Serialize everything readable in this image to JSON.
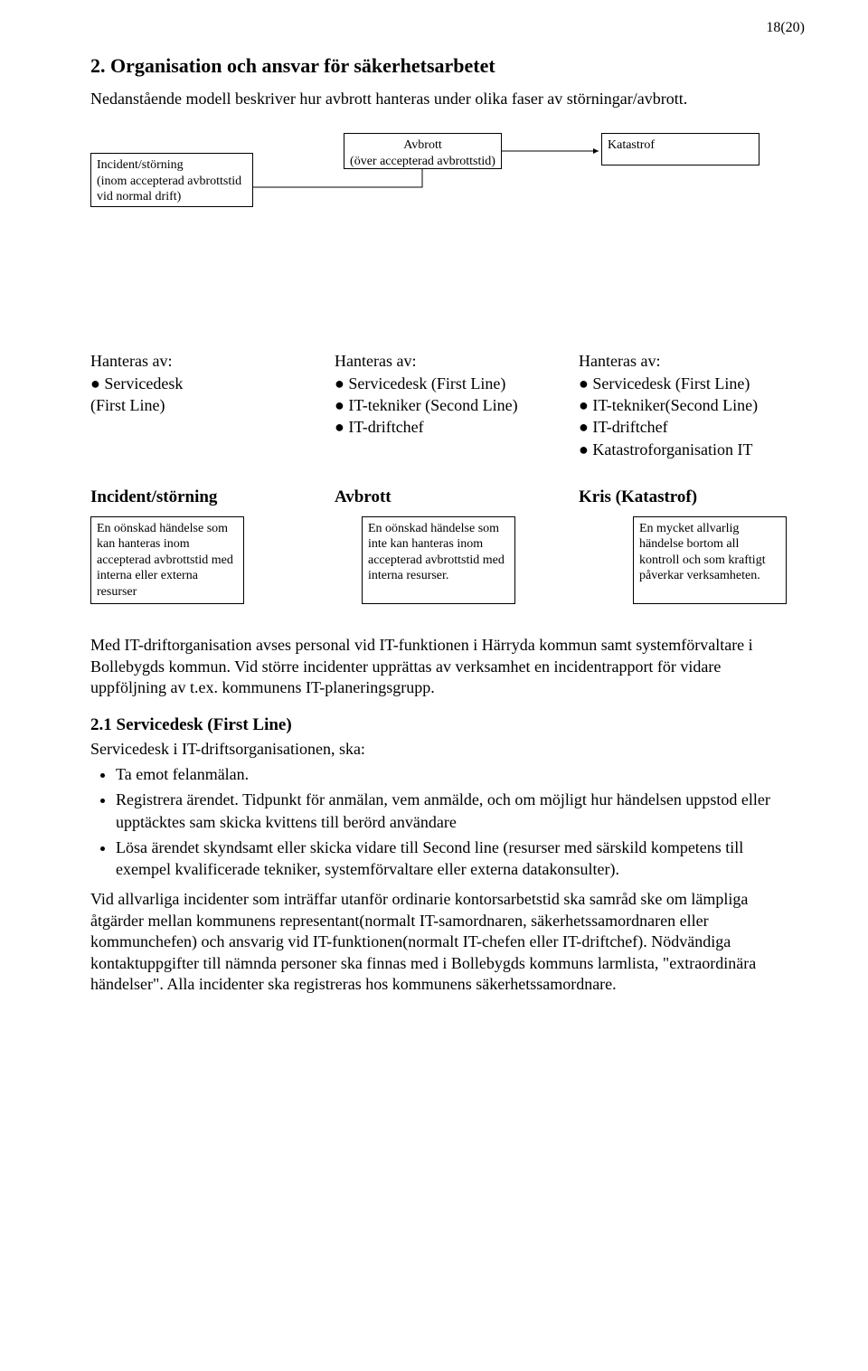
{
  "page_number": "18(20)",
  "section_title": "2. Organisation och ansvar för säkerhetsarbetet",
  "intro": "Nedanstående modell beskriver hur avbrott hanteras under olika faser av störningar/avbrott.",
  "diagram1": {
    "incident_box": "Incident/störning\n(inom accepterad avbrottstid\nvid normal drift)",
    "avbrott_box": "Avbrott\n(över accepterad avbrottstid)",
    "katastrof_box": "Katastrof"
  },
  "handled_by": {
    "col1_title": "Hanteras av:",
    "col1_items": "● Servicedesk\n(First Line)",
    "col2_title": "Hanteras av:",
    "col2_items": "● Servicedesk (First Line)\n● IT-tekniker (Second Line)\n● IT-driftchef",
    "col3_title": "Hanteras av:",
    "col3_items": "● Servicedesk (First Line)\n● IT-tekniker(Second Line)\n● IT-driftchef\n● Katastroforganisation IT"
  },
  "row2": {
    "t1": "Incident/störning",
    "t2": "Avbrott",
    "t3": "Kris (Katastrof)",
    "b1": "En oönskad händelse som kan hanteras inom accepterad avbrottstid med interna eller externa resurser",
    "b2": "En oönskad händelse som inte kan hanteras inom accepterad avbrottstid med interna resurser.",
    "b3": "En mycket allvarlig händelse bortom all kontroll och som kraftigt påverkar verksamheten."
  },
  "para_after": "Med IT-driftorganisation avses personal vid IT-funktionen i Härryda kommun samt systemförvaltare i Bollebygds kommun. Vid större incidenter upprättas av verksamhet en incidentrapport för vidare uppföljning av t.ex. kommunens IT-planeringsgrupp.",
  "sub21_title": "2.1 Servicedesk (First Line)",
  "sub21_lead": "Servicedesk i IT-driftsorganisationen, ska:",
  "sub21_items": [
    "Ta emot felanmälan.",
    "Registrera ärendet. Tidpunkt för anmälan, vem anmälde, och om möjligt hur händelsen uppstod eller upptäcktes sam skicka kvittens till berörd användare",
    "Lösa ärendet skyndsamt eller skicka vidare till Second line (resurser med särskild kompetens till exempel kvalificerade tekniker, systemförvaltare eller externa datakonsulter)."
  ],
  "final_para": "Vid allvarliga incidenter som inträffar utanför ordinarie kontorsarbetstid ska samråd ske om lämpliga åtgärder mellan kommunens representant(normalt IT-samordnaren, säkerhetssamordnaren eller kommunchefen) och ansvarig vid IT-funktionen(normalt IT-chefen eller IT-driftchef). Nödvändiga kontaktuppgifter till nämnda personer ska finnas med i Bollebygds kommuns larmlista, \"extraordinära händelser\". Alla incidenter ska registreras hos kommunens säkerhetssamordnare."
}
